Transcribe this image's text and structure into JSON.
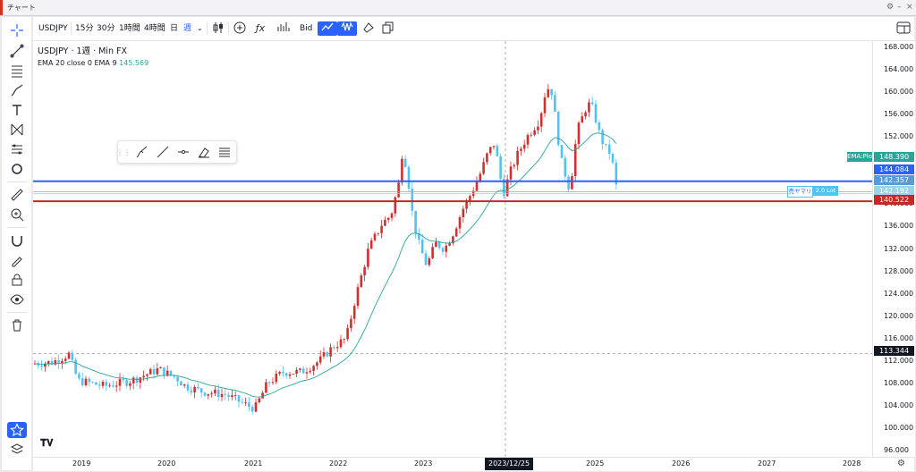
{
  "window": {
    "title": "チャート"
  },
  "toolbar": {
    "symbol": "USDJPY",
    "intervals": [
      "15分",
      "30分",
      "1時間",
      "4時間",
      "日",
      "週"
    ],
    "active_interval": "週",
    "price_source": "Bid"
  },
  "legend": {
    "symbol": "USDJPY",
    "interval": "1週",
    "source": "Min FX",
    "indicator": "EMA 20 close 0 EMA 9",
    "indicator_value": "145.569",
    "indicator_color": "#26a69a"
  },
  "price_axis": {
    "ticks": [
      "168.000",
      "164.000",
      "160.000",
      "156.000",
      "152.000",
      "148.000",
      "144.000",
      "140.000",
      "136.000",
      "132.000",
      "128.000",
      "124.000",
      "120.000",
      "116.000",
      "112.000",
      "108.000",
      "104.000",
      "100.000",
      "96.000"
    ],
    "labels": [
      {
        "text": "EMA:Plot",
        "value": "148.390",
        "color": "#26a69a"
      },
      {
        "text": "",
        "value": "144.084",
        "color": "#2962ff"
      },
      {
        "text": "",
        "value": "142.357",
        "color": "#5b9bd5"
      },
      {
        "text": "",
        "value": "142.192",
        "color": "#9bd5e5"
      },
      {
        "text": "",
        "value": "140.522",
        "color": "#c62828"
      },
      {
        "text": "",
        "value": "113.344",
        "color": "#131722"
      }
    ]
  },
  "time_axis": {
    "labels": [
      "2019",
      "2020",
      "2021",
      "2022",
      "2023",
      "2024",
      "2025",
      "2026",
      "2027",
      "2028"
    ],
    "crosshair_date": "2023/12/25"
  },
  "position": {
    "label": "売ヤマリ",
    "lots": "2.0 Lot"
  },
  "lines": {
    "blue": "#2962ff",
    "red": "#c62828",
    "bull_candle": "#d32f2f",
    "bear_candle": "#4fc3f7"
  },
  "chart_data": {
    "type": "candlestick",
    "title": "USDJPY · 1週 · Min FX",
    "xlabel": "",
    "ylabel": "",
    "ylim": [
      95,
      170
    ],
    "x_ticks": [
      "2019",
      "2020",
      "2021",
      "2022",
      "2023",
      "2024",
      "2025",
      "2026",
      "2027",
      "2028"
    ],
    "series": [
      {
        "name": "USDJPY",
        "kind": "candles",
        "x": [
          "2018-10",
          "2019-01",
          "2019-04",
          "2019-07",
          "2019-10",
          "2020-01",
          "2020-03",
          "2020-06",
          "2020-09",
          "2020-12",
          "2021-03",
          "2021-06",
          "2021-09",
          "2021-12",
          "2022-03",
          "2022-04",
          "2022-06",
          "2022-08",
          "2022-10",
          "2022-11",
          "2023-01",
          "2023-03",
          "2023-06",
          "2023-09",
          "2023-11",
          "2024-01",
          "2024-04",
          "2024-07",
          "2024-09",
          "2024-11",
          "2025-01",
          "2025-03",
          "2025-04"
        ],
        "values": [
          112,
          110,
          111,
          108,
          108.5,
          110,
          108,
          107,
          105.5,
          103.5,
          109,
          110.5,
          110,
          114,
          118,
          126,
          136,
          135,
          149,
          138,
          129,
          132,
          142,
          148,
          151,
          145,
          155,
          161,
          142,
          154,
          158,
          149,
          143
        ]
      },
      {
        "name": "EMA",
        "kind": "line",
        "value_label": "145.569"
      }
    ],
    "horizontal_lines": [
      {
        "name": "blue",
        "value": 144.084
      },
      {
        "name": "light-blue",
        "value": 142.357
      },
      {
        "name": "light-cyan",
        "value": 142.192
      },
      {
        "name": "red",
        "value": 140.522
      }
    ],
    "crosshair": {
      "x": "2023/12/25",
      "y": 113.344
    }
  }
}
